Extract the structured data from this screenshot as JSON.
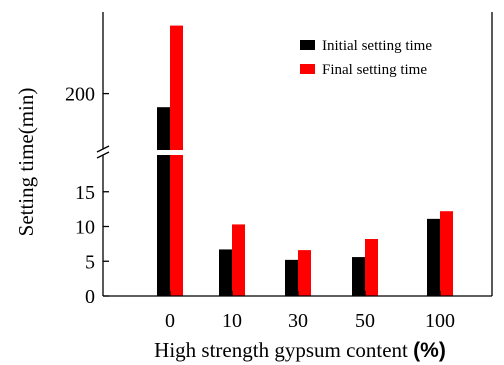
{
  "chart_data": {
    "type": "bar",
    "title": "",
    "xlabel": "High strength gypsum content ",
    "xlabel_unit": "(%)",
    "ylabel": "Setting time(min)",
    "categories": [
      "0",
      "10",
      "30",
      "50",
      "100"
    ],
    "series": [
      {
        "name": "Initial setting time",
        "color": "#000000",
        "values": [
          195,
          6.7,
          5.2,
          5.6,
          11.1
        ]
      },
      {
        "name": "Final setting time",
        "color": "#ff0000",
        "values": [
          225,
          10.3,
          6.6,
          8.2,
          12.2
        ]
      }
    ],
    "y_lower_ticks": [
      "0",
      "5",
      "10",
      "15"
    ],
    "y_upper_ticks": [
      "200"
    ],
    "ylim_lower": [
      0,
      20
    ],
    "ylim_upper": [
      180,
      230
    ],
    "axis_break": true,
    "grid": false,
    "legend_position": "top-right"
  }
}
